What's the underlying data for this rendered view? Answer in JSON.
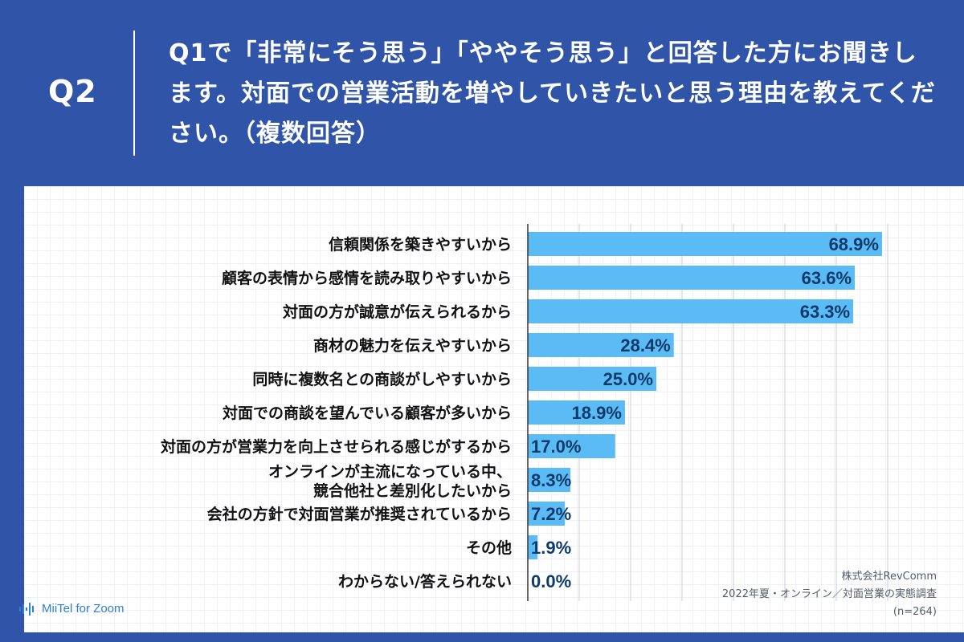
{
  "header": {
    "q_label": "Q2",
    "question": "Q1で「非常にそう思う」「ややそう思う」と回答した方にお聞きします。対面での営業活動を増やしていきたいと思う理由を教えてください。（複数回答）"
  },
  "chart_data": {
    "type": "bar",
    "orientation": "horizontal",
    "categories": [
      "信頼関係を築きやすいから",
      "顧客の表情から感情を読み取りやすいから",
      "対面の方が誠意が伝えられるから",
      "商材の魅力を伝えやすいから",
      "同時に複数名との商談がしやすいから",
      "対面での商談を望んでいる顧客が多いから",
      "対面の方が営業力を向上させられる感じがするから",
      "オンラインが主流になっている中、\n競合他社と差別化したいから",
      "会社の方針で対面営業が推奨されているから",
      "その他",
      "わからない/答えられない"
    ],
    "values": [
      68.9,
      63.6,
      63.3,
      28.4,
      25.0,
      18.9,
      17.0,
      8.3,
      7.2,
      1.9,
      0.0
    ],
    "value_labels": [
      "68.9%",
      "63.6%",
      "63.3%",
      "28.4%",
      "25.0%",
      "18.9%",
      "17.0%",
      "8.3%",
      "7.2%",
      "1.9%",
      "0.0%"
    ],
    "xlim": [
      0,
      70
    ],
    "grid": true,
    "bar_color": "#5bbcf5",
    "label_color": "#0d3a6b"
  },
  "footer": {
    "logo": "MiiTel for Zoom",
    "source_company": "株式会社RevComm",
    "source_survey": "2022年夏・オンライン／対面営業の実態調査",
    "source_n": "(n=264)"
  },
  "colors": {
    "background": "#3055a8",
    "accent": "#2e7fd6"
  }
}
